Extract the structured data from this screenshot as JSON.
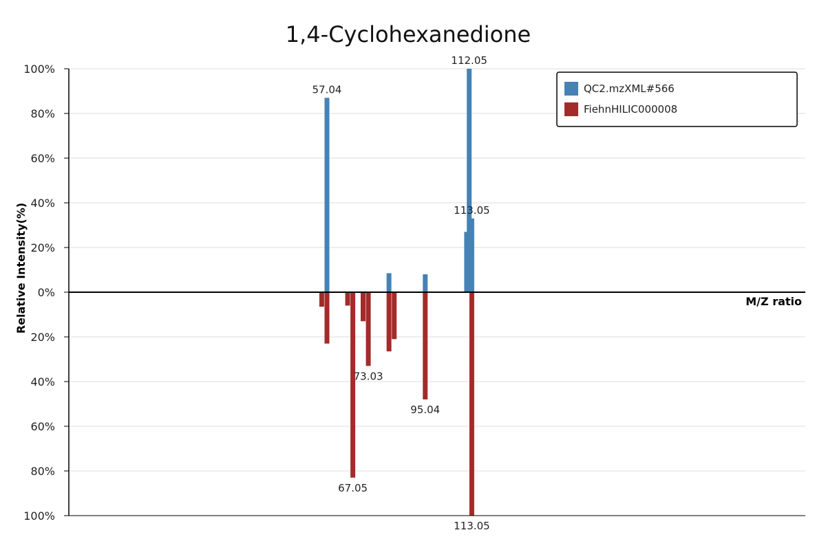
{
  "chart_data": {
    "type": "bar",
    "title": "1,4-Cyclohexanedione",
    "xlabel": "M/Z ratio",
    "ylabel": "Relative Intensity(%)",
    "ylim": [
      -100,
      100
    ],
    "y_ticks": [
      100,
      80,
      60,
      40,
      20,
      0,
      -20,
      -40,
      -60,
      -80,
      -100
    ],
    "y_tick_labels": [
      "100%",
      "80%",
      "60%",
      "40%",
      "20%",
      "0%",
      "20%",
      "40%",
      "60%",
      "80%",
      "100%"
    ],
    "grid": true,
    "legend_position": "top-right",
    "series": [
      {
        "name": "QC2.mzXML#566",
        "color": "#4682b4",
        "direction": "up",
        "peaks": [
          {
            "mz": 57.04,
            "intensity": 87,
            "label": "57.04"
          },
          {
            "mz": 81.03,
            "intensity": 8.5
          },
          {
            "mz": 95.04,
            "intensity": 8
          },
          {
            "mz": 111.04,
            "intensity": 27
          },
          {
            "mz": 112.05,
            "intensity": 100,
            "label": "112.05"
          },
          {
            "mz": 113.05,
            "intensity": 33,
            "label": "113.05"
          }
        ]
      },
      {
        "name": "FiehnHILIC000008",
        "color": "#a52a2a",
        "direction": "down",
        "peaks": [
          {
            "mz": 55.02,
            "intensity": 6.5
          },
          {
            "mz": 57.04,
            "intensity": 23
          },
          {
            "mz": 65.04,
            "intensity": 6
          },
          {
            "mz": 67.05,
            "intensity": 83,
            "label": "67.05"
          },
          {
            "mz": 71.01,
            "intensity": 13
          },
          {
            "mz": 73.03,
            "intensity": 33,
            "label": "73.03"
          },
          {
            "mz": 81.03,
            "intensity": 26.5
          },
          {
            "mz": 83.05,
            "intensity": 21
          },
          {
            "mz": 95.04,
            "intensity": 48,
            "label": "95.04"
          },
          {
            "mz": 113.05,
            "intensity": 100,
            "label": "113.05"
          }
        ]
      }
    ]
  }
}
